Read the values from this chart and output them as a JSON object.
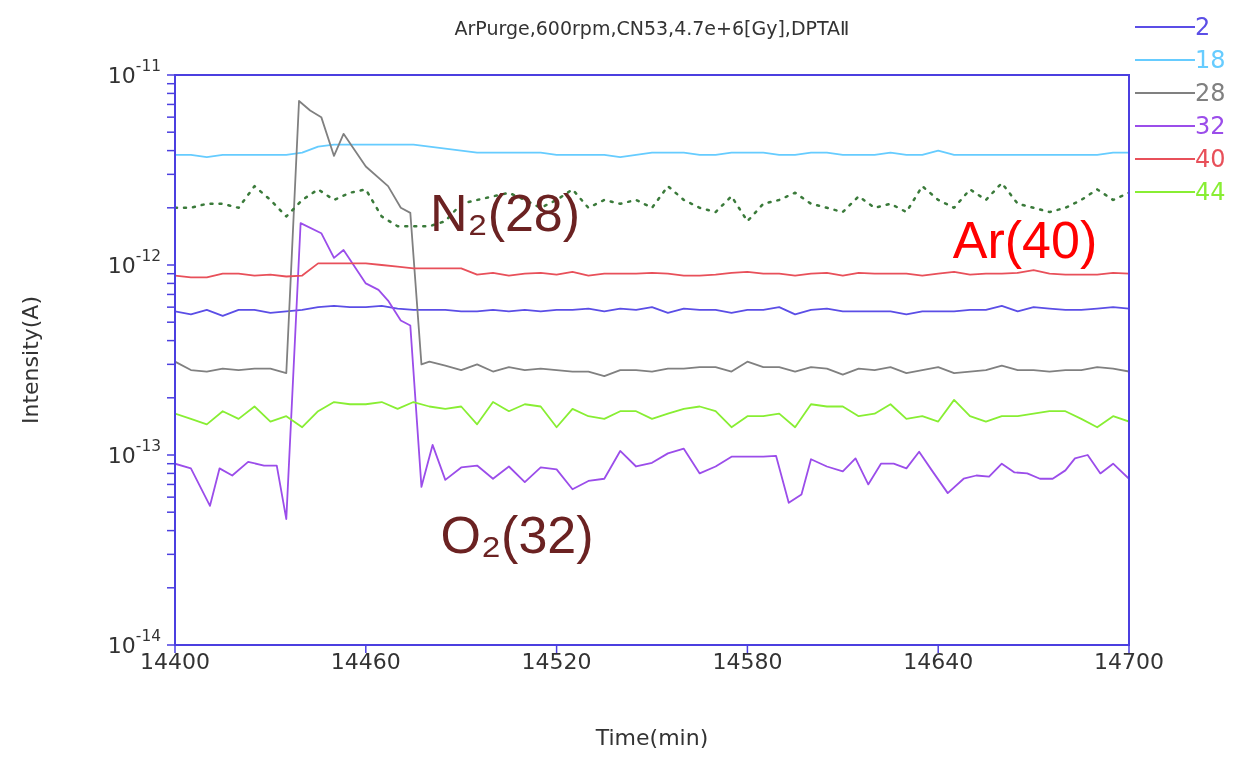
{
  "chart_data": {
    "type": "line",
    "title": "ArPurge,600rpm,CN53,4.7e+6[Gy],DPTAⅡ",
    "xlabel": "Time(min)",
    "ylabel": "Intensity(A)",
    "log": true,
    "grid": false,
    "legend": "top right",
    "line_style": "solid",
    "marker": "none",
    "xlim": [
      14400,
      14700
    ],
    "xticks": [
      14400,
      14460,
      14520,
      14580,
      14640,
      14700
    ],
    "ylim": [
      1e-14,
      1e-11
    ],
    "yticks": [
      {
        "value": 1e-14,
        "label": "10$^{-14}$"
      },
      {
        "value": 2e-14,
        "label": null
      },
      {
        "value": 3e-14,
        "label": null
      },
      {
        "value": 4e-14,
        "label": null
      },
      {
        "value": 5e-14,
        "label": null
      },
      {
        "value": 6e-14,
        "label": null
      },
      {
        "value": 7e-14,
        "label": null
      },
      {
        "value": 8e-14,
        "label": null
      },
      {
        "value": 9e-14,
        "label": null
      },
      {
        "value": 1e-13,
        "label": "10$^{-13}$"
      },
      {
        "value": 2e-13,
        "label": null
      },
      {
        "value": 3e-13,
        "label": null
      },
      {
        "value": 4e-13,
        "label": null
      },
      {
        "value": 5e-13,
        "label": null
      },
      {
        "value": 6e-13,
        "label": null
      },
      {
        "value": 7e-13,
        "label": null
      },
      {
        "value": 8e-13,
        "label": null
      },
      {
        "value": 9e-13,
        "label": null
      },
      {
        "value": 1e-12,
        "label": "10$^{-12}$"
      },
      {
        "value": 2e-12,
        "label": null
      },
      {
        "value": 3e-12,
        "label": null
      },
      {
        "value": 4e-12,
        "label": null
      },
      {
        "value": 5e-12,
        "label": null
      },
      {
        "value": 6e-12,
        "label": null
      },
      {
        "value": 7e-12,
        "label": null
      },
      {
        "value": 8e-12,
        "label": null
      },
      {
        "value": 9e-12,
        "label": null
      },
      {
        "value": 1e-11,
        "label": "10$^{-11}$"
      }
    ],
    "x": [
      14400,
      14405,
      14410,
      14415,
      14420,
      14425,
      14430,
      14435,
      14440,
      14445,
      14450,
      14455,
      14460,
      14465,
      14470,
      14475,
      14480,
      14485,
      14490,
      14495,
      14500,
      14505,
      14510,
      14515,
      14520,
      14525,
      14530,
      14535,
      14540,
      14545,
      14550,
      14555,
      14560,
      14565,
      14570,
      14575,
      14580,
      14585,
      14590,
      14595,
      14600,
      14605,
      14610,
      14615,
      14620,
      14625,
      14630,
      14635,
      14640,
      14645,
      14650,
      14655,
      14660,
      14665,
      14670,
      14675,
      14680,
      14685,
      14690,
      14695,
      14700
    ],
    "annotations": [
      "N₂(28)",
      "Ar(40)",
      "O₂(32)"
    ],
    "series": [
      {
        "name": "2",
        "color": "#5b4ee6",
        "values": [
          5.7e-13,
          5.5e-13,
          5.8e-13,
          5.4e-13,
          5.8e-13,
          5.8e-13,
          5.6e-13,
          5.7e-13,
          5.8e-13,
          6e-13,
          6.1e-13,
          6e-13,
          6e-13,
          6.1e-13,
          5.9e-13,
          5.8e-13,
          5.8e-13,
          5.8e-13,
          5.7e-13,
          5.7e-13,
          5.8e-13,
          5.7e-13,
          5.8e-13,
          5.7e-13,
          5.8e-13,
          5.8e-13,
          5.9e-13,
          5.7e-13,
          5.9e-13,
          5.8e-13,
          6e-13,
          5.6e-13,
          5.9e-13,
          5.8e-13,
          5.8e-13,
          5.6e-13,
          5.8e-13,
          5.8e-13,
          6e-13,
          5.5e-13,
          5.8e-13,
          5.9e-13,
          5.7e-13,
          5.7e-13,
          5.7e-13,
          5.7e-13,
          5.5e-13,
          5.7e-13,
          5.7e-13,
          5.7e-13,
          5.8e-13,
          5.8e-13,
          6.1e-13,
          5.7e-13,
          6e-13,
          5.9e-13,
          5.8e-13,
          5.8e-13,
          5.9e-13,
          6e-13,
          5.9e-13
        ]
      },
      {
        "name": "18",
        "color": "#66ccff",
        "values": [
          3.8e-12,
          3.8e-12,
          3.7e-12,
          3.8e-12,
          3.8e-12,
          3.8e-12,
          3.8e-12,
          3.8e-12,
          3.9e-12,
          4.2e-12,
          4.3e-12,
          4.3e-12,
          4.3e-12,
          4.3e-12,
          4.3e-12,
          4.3e-12,
          4.2e-12,
          4.1e-12,
          4e-12,
          3.9e-12,
          3.9e-12,
          3.9e-12,
          3.9e-12,
          3.9e-12,
          3.8e-12,
          3.8e-12,
          3.8e-12,
          3.8e-12,
          3.7e-12,
          3.8e-12,
          3.9e-12,
          3.9e-12,
          3.9e-12,
          3.8e-12,
          3.8e-12,
          3.9e-12,
          3.9e-12,
          3.9e-12,
          3.8e-12,
          3.8e-12,
          3.9e-12,
          3.9e-12,
          3.8e-12,
          3.8e-12,
          3.8e-12,
          3.9e-12,
          3.8e-12,
          3.8e-12,
          4e-12,
          3.8e-12,
          3.8e-12,
          3.8e-12,
          3.8e-12,
          3.8e-12,
          3.8e-12,
          3.8e-12,
          3.8e-12,
          3.8e-12,
          3.8e-12,
          3.9e-12,
          3.9e-12
        ]
      },
      {
        "name": "28",
        "color": "#808080",
        "x": [
          14400,
          14405,
          14410,
          14415,
          14420,
          14425,
          14430,
          14435,
          14439,
          14442.5,
          14446,
          14450,
          14453,
          14460,
          14467,
          14471,
          14474,
          14477.5,
          14480,
          14485,
          14490,
          14495,
          14500,
          14505,
          14510,
          14515,
          14520,
          14525,
          14530,
          14535,
          14540,
          14545,
          14550,
          14555,
          14560,
          14565,
          14570,
          14575,
          14580,
          14585,
          14590,
          14595,
          14600,
          14605,
          14610,
          14615,
          14620,
          14625,
          14630,
          14635,
          14640,
          14645,
          14650,
          14655,
          14660,
          14665,
          14670,
          14675,
          14680,
          14685,
          14690,
          14695,
          14700
        ],
        "values": [
          3.1e-13,
          2.8e-13,
          2.75e-13,
          2.85e-13,
          2.8e-13,
          2.85e-13,
          2.85e-13,
          2.7e-13,
          7.3e-12,
          6.5e-12,
          6e-12,
          3.75e-12,
          4.9e-12,
          3.3e-12,
          2.6e-12,
          2e-12,
          1.88e-12,
          3e-13,
          3.1e-13,
          2.95e-13,
          2.8e-13,
          3e-13,
          2.75e-13,
          2.9e-13,
          2.8e-13,
          2.85e-13,
          2.8e-13,
          2.75e-13,
          2.75e-13,
          2.6e-13,
          2.8e-13,
          2.8e-13,
          2.75e-13,
          2.85e-13,
          2.85e-13,
          2.9e-13,
          2.9e-13,
          2.75e-13,
          3.1e-13,
          2.9e-13,
          2.9e-13,
          2.75e-13,
          2.9e-13,
          2.85e-13,
          2.65e-13,
          2.85e-13,
          2.8e-13,
          2.9e-13,
          2.7e-13,
          2.8e-13,
          2.9e-13,
          2.7e-13,
          2.75e-13,
          2.8e-13,
          2.95e-13,
          2.8e-13,
          2.8e-13,
          2.75e-13,
          2.8e-13,
          2.8e-13,
          2.9e-13,
          2.85e-13,
          2.75e-13
        ]
      },
      {
        "name": "32",
        "color": "#9b4dea",
        "x": [
          14400,
          14405,
          14411,
          14414,
          14418,
          14423,
          14428,
          14432,
          14435,
          14439.5,
          14446,
          14450,
          14453,
          14460,
          14464,
          14467,
          14471,
          14474,
          14477.5,
          14481,
          14485,
          14490,
          14495,
          14500,
          14505,
          14510,
          14515,
          14520,
          14525,
          14530,
          14535,
          14540,
          14545,
          14550,
          14555,
          14560,
          14565,
          14570,
          14575,
          14580,
          14585,
          14589,
          14593,
          14597,
          14600,
          14605,
          14610,
          14614,
          14618,
          14622,
          14626,
          14630,
          14634,
          14638,
          14643,
          14648,
          14652,
          14656,
          14660,
          14664,
          14668,
          14672,
          14676,
          14680,
          14683,
          14687,
          14691,
          14695,
          14700
        ],
        "values": [
          9e-14,
          8.5e-14,
          5.4e-14,
          8.5e-14,
          7.8e-14,
          9.2e-14,
          8.8e-14,
          8.8e-14,
          4.6e-14,
          1.66e-12,
          1.47e-12,
          1.09e-12,
          1.2e-12,
          8e-13,
          7.4e-13,
          6.5e-13,
          5.1e-13,
          4.8e-13,
          6.8e-14,
          1.13e-13,
          7.4e-14,
          8.6e-14,
          8.8e-14,
          7.5e-14,
          8.7e-14,
          7.2e-14,
          8.6e-14,
          8.4e-14,
          6.6e-14,
          7.3e-14,
          7.5e-14,
          1.05e-13,
          8.7e-14,
          9.1e-14,
          1.02e-13,
          1.08e-13,
          8e-14,
          8.7e-14,
          9.8e-14,
          9.8e-14,
          9.8e-14,
          9.9e-14,
          5.6e-14,
          6.2e-14,
          9.5e-14,
          8.7e-14,
          8.2e-14,
          9.6e-14,
          7e-14,
          9e-14,
          9e-14,
          8.5e-14,
          1.04e-13,
          8.3e-14,
          6.3e-14,
          7.5e-14,
          7.8e-14,
          7.7e-14,
          9e-14,
          8.1e-14,
          8e-14,
          7.5e-14,
          7.5e-14,
          8.3e-14,
          9.6e-14,
          1e-13,
          8e-14,
          9e-14,
          7.5e-14
        ]
      },
      {
        "name": "40",
        "color": "#e8505a",
        "values": [
          8.8e-13,
          8.6e-13,
          8.6e-13,
          9e-13,
          9e-13,
          8.8e-13,
          8.9e-13,
          8.7e-13,
          8.8e-13,
          1.02e-12,
          1.02e-12,
          1.02e-12,
          1.02e-12,
          1e-12,
          9.8e-13,
          9.6e-13,
          9.6e-13,
          9.6e-13,
          9.6e-13,
          8.9e-13,
          9.1e-13,
          8.8e-13,
          9e-13,
          9.1e-13,
          8.9e-13,
          9.2e-13,
          8.8e-13,
          9e-13,
          9e-13,
          9e-13,
          9.1e-13,
          9e-13,
          8.8e-13,
          8.8e-13,
          8.9e-13,
          9.1e-13,
          9.2e-13,
          9e-13,
          9e-13,
          8.8e-13,
          9e-13,
          9.1e-13,
          8.8e-13,
          9.1e-13,
          9e-13,
          9e-13,
          9e-13,
          8.8e-13,
          9e-13,
          9.2e-13,
          8.9e-13,
          9e-13,
          9e-13,
          9.1e-13,
          9.4e-13,
          9e-13,
          8.9e-13,
          8.9e-13,
          8.9e-13,
          9.1e-13,
          9e-13
        ]
      },
      {
        "name": "44",
        "color": "#88ee33",
        "values": [
          1.65e-13,
          1.55e-13,
          1.45e-13,
          1.7e-13,
          1.55e-13,
          1.8e-13,
          1.5e-13,
          1.6e-13,
          1.4e-13,
          1.7e-13,
          1.9e-13,
          1.85e-13,
          1.85e-13,
          1.9e-13,
          1.75e-13,
          1.9e-13,
          1.8e-13,
          1.75e-13,
          1.8e-13,
          1.45e-13,
          1.9e-13,
          1.7e-13,
          1.85e-13,
          1.8e-13,
          1.4e-13,
          1.75e-13,
          1.6e-13,
          1.55e-13,
          1.7e-13,
          1.7e-13,
          1.55e-13,
          1.65e-13,
          1.75e-13,
          1.8e-13,
          1.7e-13,
          1.4e-13,
          1.6e-13,
          1.6e-13,
          1.65e-13,
          1.4e-13,
          1.85e-13,
          1.8e-13,
          1.8e-13,
          1.6e-13,
          1.65e-13,
          1.85e-13,
          1.55e-13,
          1.6e-13,
          1.5e-13,
          1.95e-13,
          1.6e-13,
          1.5e-13,
          1.6e-13,
          1.6e-13,
          1.65e-13,
          1.7e-13,
          1.7e-13,
          1.55e-13,
          1.4e-13,
          1.6e-13,
          1.5e-13
        ]
      },
      {
        "color": "#3a7a3a",
        "line_style": "dotted",
        "values": [
          2e-12,
          2e-12,
          2.1e-12,
          2.1e-12,
          2e-12,
          2.6e-12,
          2.2e-12,
          1.8e-12,
          2.2e-12,
          2.5e-12,
          2.2e-12,
          2.4e-12,
          2.5e-12,
          1.8e-12,
          1.6e-12,
          1.6e-12,
          1.6e-12,
          1.7e-12,
          2.1e-12,
          2.2e-12,
          2.3e-12,
          2.4e-12,
          2.2e-12,
          2e-12,
          2.2e-12,
          2.5e-12,
          2e-12,
          2.2e-12,
          2.1e-12,
          2.2e-12,
          2e-12,
          2.6e-12,
          2.2e-12,
          2e-12,
          1.9e-12,
          2.3e-12,
          1.7e-12,
          2.1e-12,
          2.2e-12,
          2.4e-12,
          2.1e-12,
          2e-12,
          1.9e-12,
          2.3e-12,
          2e-12,
          2.1e-12,
          1.9e-12,
          2.6e-12,
          2.2e-12,
          2e-12,
          2.5e-12,
          2.2e-12,
          2.7e-12,
          2.1e-12,
          2e-12,
          1.9e-12,
          2e-12,
          2.2e-12,
          2.5e-12,
          2.2e-12,
          2.4e-12
        ]
      }
    ]
  }
}
